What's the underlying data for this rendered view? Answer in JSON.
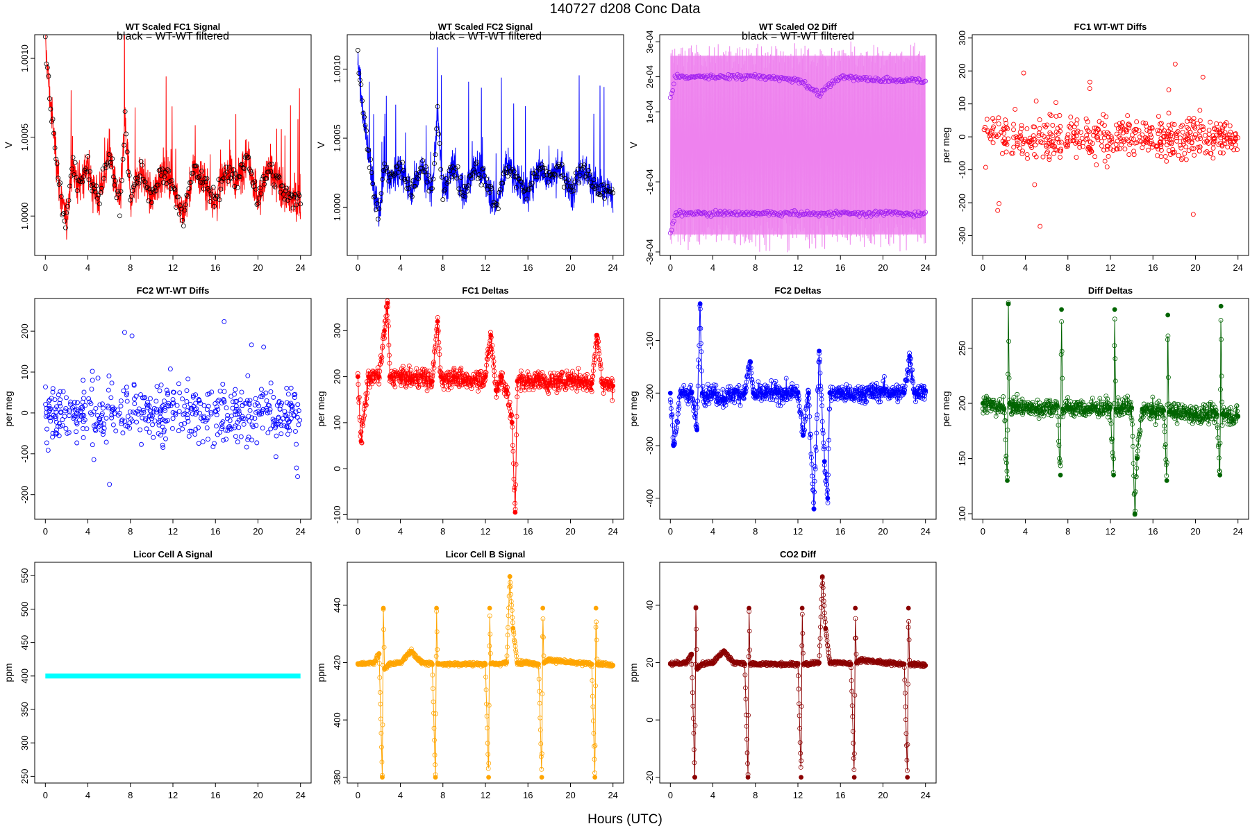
{
  "figure": {
    "title": "140727   d208   Conc Data",
    "xlabel": "Hours (UTC)"
  },
  "chart_data": [
    {
      "id": "p1",
      "type": "line",
      "title": "WT Scaled FC1 Signal",
      "note": "black = WT-WT filtered",
      "ylabel": "V",
      "color": "#ff0000",
      "marker_color": "#000000",
      "xlim": [
        -1,
        25
      ],
      "ylim": [
        0.99975,
        1.00115
      ],
      "xticks": [
        0,
        4,
        8,
        12,
        16,
        20,
        24
      ],
      "yticks": [
        1.0,
        1.0005,
        1.001
      ],
      "ytick_labels": [
        "1.0000",
        "1.0005",
        "1.0010"
      ],
      "x": [
        0,
        0.5,
        1,
        1.5,
        2,
        2.5,
        3,
        4,
        5,
        6,
        7,
        7.5,
        8,
        9,
        10,
        11,
        12,
        13,
        14,
        15,
        16,
        17,
        18,
        19,
        20,
        21,
        22,
        23,
        24
      ],
      "values": [
        1.0011,
        1.0007,
        1.0004,
        1.0001,
        0.99995,
        1.00035,
        1.0002,
        1.0003,
        1.0001,
        1.0004,
        1.00005,
        1.0006,
        1.0001,
        1.0003,
        1.0001,
        1.0003,
        1.0002,
        1.0,
        1.0003,
        1.0002,
        1.0001,
        1.0003,
        1.0002,
        1.0004,
        1.0001,
        1.0003,
        1.0002,
        1.0001,
        1.0001
      ]
    },
    {
      "id": "p2",
      "type": "line",
      "title": "WT Scaled FC2 Signal",
      "note": "black = WT-WT filtered",
      "ylabel": "V",
      "color": "#0000ff",
      "marker_color": "#000000",
      "xlim": [
        -1,
        25
      ],
      "ylim": [
        0.99965,
        1.00125
      ],
      "xticks": [
        0,
        4,
        8,
        12,
        16,
        20,
        24
      ],
      "yticks": [
        1.0,
        1.0005,
        1.001
      ],
      "ytick_labels": [
        "1.0000",
        "1.0005",
        "1.0010"
      ],
      "x": [
        0,
        0.5,
        1,
        1.5,
        2,
        2.5,
        3,
        4,
        5,
        6,
        7,
        7.5,
        8,
        9,
        10,
        11,
        12,
        13,
        14,
        15,
        16,
        17,
        18,
        19,
        20,
        21,
        22,
        23,
        24
      ],
      "values": [
        1.0011,
        1.0007,
        1.0004,
        1.0001,
        0.99995,
        1.0003,
        1.0002,
        1.0003,
        1.0001,
        1.0003,
        1.0001,
        1.0007,
        1.0001,
        1.0003,
        1.0001,
        1.0003,
        1.0002,
        1.0,
        1.0003,
        1.0002,
        1.0001,
        1.0003,
        1.0002,
        1.0003,
        1.0001,
        1.0003,
        1.0002,
        1.0001,
        1.0001
      ]
    },
    {
      "id": "p3",
      "type": "scatter",
      "title": "WT Scaled O2 Diff",
      "note": "black = WT-WT filtered",
      "ylabel": "V",
      "color": "#ee82ee",
      "marker_color": "#a020f0",
      "xlim": [
        -1,
        25
      ],
      "ylim": [
        -0.00031,
        0.00032
      ],
      "xticks": [
        0,
        4,
        8,
        12,
        16,
        20,
        24
      ],
      "yticks": [
        -0.0003,
        -0.0001,
        0.0001,
        0.0002,
        0.0003
      ],
      "ytick_labels": [
        "-3e-04",
        "-1e-04",
        "1e-04",
        "2e-04",
        "3e-04"
      ],
      "band": [
        -0.00025,
        0.00026
      ],
      "upper_level": [
        [
          0,
          0.00014
        ],
        [
          0.5,
          0.0002
        ],
        [
          4,
          0.0002
        ],
        [
          8,
          0.0002
        ],
        [
          12,
          0.00019
        ],
        [
          14,
          0.00015
        ],
        [
          16,
          0.0002
        ],
        [
          20,
          0.00019
        ],
        [
          24,
          0.00019
        ]
      ],
      "lower_level": [
        [
          0,
          -0.00025
        ],
        [
          0.5,
          -0.00019
        ],
        [
          4,
          -0.00019
        ],
        [
          8,
          -0.00019
        ],
        [
          12,
          -0.00019
        ],
        [
          16,
          -0.00019
        ],
        [
          20,
          -0.00019
        ],
        [
          24,
          -0.00019
        ]
      ]
    },
    {
      "id": "p4",
      "type": "scatter",
      "title": "FC1 WT-WT Diffs",
      "ylabel": "per meg",
      "color": "#ff0000",
      "xlim": [
        -1,
        25
      ],
      "ylim": [
        -360,
        310
      ],
      "xticks": [
        0,
        4,
        8,
        12,
        16,
        20,
        24
      ],
      "yticks": [
        -300,
        -200,
        -100,
        0,
        100,
        200,
        300
      ],
      "center": 0,
      "spread": 45
    },
    {
      "id": "p5",
      "type": "scatter",
      "title": "FC2 WT-WT Diffs",
      "ylabel": "per meg",
      "color": "#0000ff",
      "xlim": [
        -1,
        25
      ],
      "ylim": [
        -260,
        280
      ],
      "xticks": [
        0,
        4,
        8,
        12,
        16,
        20,
        24
      ],
      "yticks": [
        -200,
        -100,
        0,
        100,
        200
      ],
      "center": 0,
      "spread": 50
    },
    {
      "id": "p6",
      "type": "line",
      "title": "FC1 Deltas",
      "ylabel": "per meg",
      "color": "#ff0000",
      "xlim": [
        -1,
        25
      ],
      "ylim": [
        -110,
        370
      ],
      "xticks": [
        0,
        4,
        8,
        12,
        16,
        20,
        24
      ],
      "yticks": [
        -100,
        0,
        100,
        200,
        300
      ],
      "x": [
        0,
        0.3,
        1,
        2,
        2.5,
        2.8,
        3,
        4,
        5,
        6,
        7,
        7.5,
        7.8,
        8,
        9,
        10,
        11,
        12,
        12.5,
        13,
        13.5,
        14,
        14.5,
        14.8,
        15,
        16,
        17,
        18,
        19,
        20,
        21,
        22,
        22.5,
        23,
        24
      ],
      "values": [
        200,
        60,
        200,
        200,
        300,
        360,
        200,
        200,
        195,
        200,
        190,
        320,
        200,
        195,
        200,
        190,
        195,
        200,
        290,
        170,
        200,
        170,
        100,
        -95,
        190,
        190,
        195,
        185,
        190,
        195,
        190,
        185,
        290,
        185,
        180
      ]
    },
    {
      "id": "p7",
      "type": "line",
      "title": "FC2 Deltas",
      "ylabel": "per meg",
      "color": "#0000ff",
      "xlim": [
        -1,
        25
      ],
      "ylim": [
        -440,
        -20
      ],
      "xticks": [
        0,
        4,
        8,
        12,
        16,
        20,
        24
      ],
      "yticks": [
        -400,
        -300,
        -200,
        -100
      ],
      "x": [
        0,
        0.3,
        1,
        2,
        2.5,
        2.8,
        3,
        4,
        5,
        6,
        7,
        7.5,
        7.8,
        8,
        9,
        10,
        11,
        12,
        12.5,
        13,
        13.5,
        14,
        14.5,
        14.8,
        15,
        16,
        17,
        18,
        19,
        20,
        21,
        22,
        22.5,
        23,
        24
      ],
      "values": [
        -200,
        -300,
        -200,
        -200,
        -270,
        -30,
        -200,
        -200,
        -210,
        -200,
        -200,
        -140,
        -200,
        -205,
        -200,
        -200,
        -200,
        -200,
        -280,
        -200,
        -420,
        -120,
        -330,
        -400,
        -200,
        -200,
        -205,
        -200,
        -200,
        -195,
        -200,
        -200,
        -130,
        -200,
        -195
      ]
    },
    {
      "id": "p8",
      "type": "line",
      "title": "Diff Deltas",
      "ylabel": "per meg",
      "color": "#006400",
      "xlim": [
        -1,
        25
      ],
      "ylim": [
        95,
        295
      ],
      "xticks": [
        0,
        4,
        8,
        12,
        16,
        20,
        24
      ],
      "yticks": [
        100,
        150,
        200,
        250
      ],
      "x": [
        0,
        2,
        2.3,
        2.4,
        2.5,
        3,
        5,
        7,
        7.3,
        7.4,
        7.5,
        8,
        10,
        12,
        12.3,
        12.4,
        12.5,
        13,
        14,
        14.3,
        14.5,
        15,
        16,
        17,
        17.3,
        17.4,
        17.5,
        18,
        20,
        22,
        22.3,
        22.4,
        22.5,
        23,
        24
      ],
      "values": [
        200,
        195,
        130,
        290,
        200,
        197,
        195,
        198,
        135,
        285,
        195,
        196,
        195,
        196,
        135,
        285,
        195,
        196,
        196,
        100,
        150,
        195,
        192,
        194,
        130,
        280,
        192,
        192,
        190,
        190,
        135,
        288,
        190,
        190,
        188
      ]
    },
    {
      "id": "p9",
      "type": "line",
      "title": "Licor Cell A Signal",
      "ylabel": "ppm",
      "color": "#00ffff",
      "xlim": [
        -1,
        25
      ],
      "ylim": [
        240,
        570
      ],
      "xticks": [
        0,
        4,
        8,
        12,
        16,
        20,
        24
      ],
      "yticks": [
        250,
        300,
        350,
        400,
        450,
        500,
        550
      ],
      "x": [
        0,
        24
      ],
      "values": [
        400,
        400
      ]
    },
    {
      "id": "p10",
      "type": "line",
      "title": "Licor Cell B Signal",
      "ylabel": "ppm",
      "color": "#ffa500",
      "xlim": [
        -1,
        25
      ],
      "ylim": [
        378,
        455
      ],
      "xticks": [
        0,
        4,
        8,
        12,
        16,
        20,
        24
      ],
      "yticks": [
        380,
        400,
        420,
        440
      ],
      "x": [
        0,
        1.5,
        2,
        2.3,
        2.4,
        2.5,
        3,
        4,
        5,
        6,
        7,
        7.3,
        7.4,
        7.5,
        8,
        10,
        12,
        12.3,
        12.4,
        12.5,
        13,
        14,
        14.3,
        14.6,
        15,
        16,
        17,
        17.3,
        17.4,
        17.5,
        18,
        20,
        22,
        22.3,
        22.4,
        22.5,
        23,
        24
      ],
      "values": [
        419.5,
        420,
        423,
        380,
        439,
        418,
        419.5,
        420,
        424,
        420,
        419.5,
        380,
        439,
        419.5,
        419.5,
        419.5,
        419.5,
        380,
        439,
        419.5,
        419.5,
        420,
        450,
        432,
        420,
        420,
        419.5,
        380,
        439,
        420,
        421,
        420,
        419.5,
        380,
        439,
        419.5,
        419.5,
        419
      ]
    },
    {
      "id": "p11",
      "type": "line",
      "title": "CO2 Diff",
      "ylabel": "ppm",
      "color": "#8b0000",
      "xlim": [
        -1,
        25
      ],
      "ylim": [
        -22,
        55
      ],
      "xticks": [
        0,
        4,
        8,
        12,
        16,
        20,
        24
      ],
      "yticks": [
        -20,
        0,
        20,
        40
      ],
      "x": [
        0,
        1.5,
        2,
        2.3,
        2.4,
        2.5,
        3,
        4,
        5,
        6,
        7,
        7.3,
        7.4,
        7.5,
        8,
        10,
        12,
        12.3,
        12.4,
        12.5,
        13,
        14,
        14.3,
        14.6,
        15,
        16,
        17,
        17.3,
        17.4,
        17.5,
        18,
        20,
        22,
        22.3,
        22.4,
        22.5,
        23,
        24
      ],
      "values": [
        19.5,
        20,
        23,
        -20,
        39,
        18,
        19.5,
        20,
        24,
        20,
        19.5,
        -20,
        39,
        19.5,
        19.5,
        19.5,
        19.5,
        -20,
        39,
        19.5,
        19.5,
        20,
        50,
        32,
        20,
        20,
        19.5,
        -20,
        39,
        20,
        21,
        20,
        19.5,
        -20,
        39,
        19.5,
        19.5,
        19
      ]
    }
  ]
}
